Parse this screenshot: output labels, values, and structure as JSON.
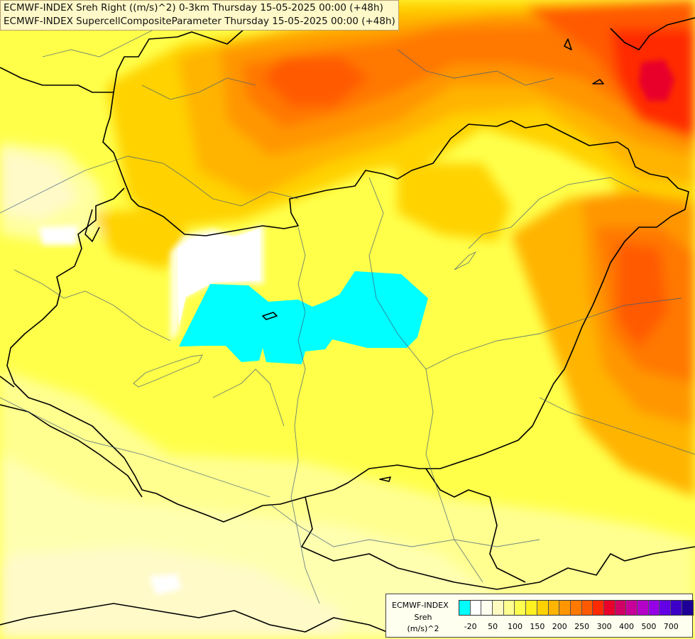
{
  "title": {
    "line1": "ECMWF-INDEX Sreh Right ((m/s)^2) 0-3km Thursday 15-05-2025 00:00 (+48h)",
    "line2": "ECMWF-INDEX SupercellCompositeParameter Thursday 15-05-2025 00:00 (+48h)"
  },
  "legend": {
    "model": "ECMWF-INDEX",
    "parameter": "Sreh",
    "unit": "(m/s)^2",
    "colors": [
      "#00ffff",
      "#ffffff",
      "#fffff0",
      "#fffac0",
      "#ffff90",
      "#ffff50",
      "#fff020",
      "#ffd200",
      "#ffb400",
      "#ff9600",
      "#ff7800",
      "#ff5a00",
      "#ff2a00",
      "#e8002a",
      "#d00064",
      "#c8009a",
      "#b400c8",
      "#9600e6",
      "#6400e6",
      "#3c00c8",
      "#1e0096"
    ],
    "ticks": [
      {
        "label": "-20",
        "index": 1
      },
      {
        "label": "50",
        "index": 3
      },
      {
        "label": "100",
        "index": 5
      },
      {
        "label": "150",
        "index": 7
      },
      {
        "label": "200",
        "index": 9
      },
      {
        "label": "250",
        "index": 11
      },
      {
        "label": "300",
        "index": 13
      },
      {
        "label": "400",
        "index": 15
      },
      {
        "label": "500",
        "index": 17
      },
      {
        "label": "700",
        "index": 19
      }
    ]
  }
}
